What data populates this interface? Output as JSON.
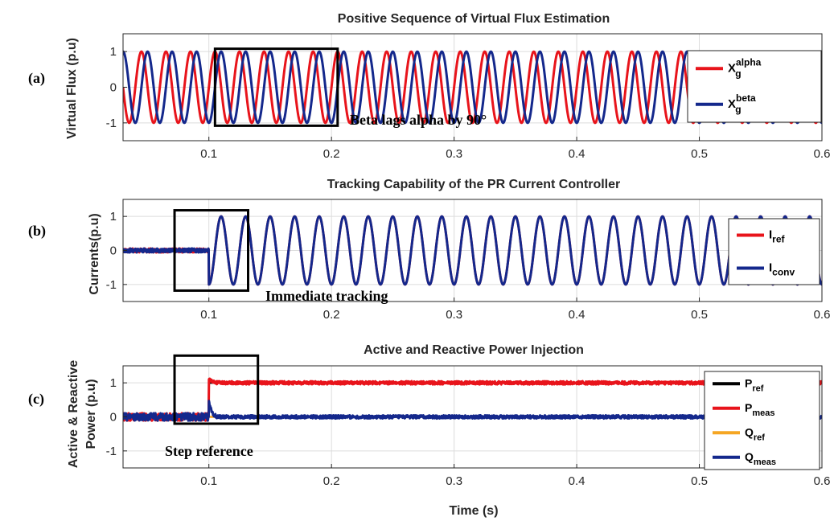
{
  "xlabel": "Time (s)",
  "colors": {
    "red": "#e8141b",
    "blue": "#14288c",
    "black": "#000000",
    "orange": "#f5a623"
  },
  "chart_data": [
    {
      "panel_label": "(a)",
      "type": "line",
      "title": "Positive Sequence of Virtual Flux Estimation",
      "ylabel": "Virtual Flux (p.u)",
      "xlim": [
        0.03,
        0.6
      ],
      "ylim": [
        -1.5,
        1.5
      ],
      "xticks": [
        "0.1",
        "0.2",
        "0.3",
        "0.4",
        "0.5",
        "0.6"
      ],
      "yticks": [
        "-1",
        "0",
        "1"
      ],
      "grid": true,
      "legend_position": "right",
      "series": [
        {
          "name": "X",
          "sup": "alpha",
          "sub": "g",
          "color": "#e8141b",
          "frequency_hz": 50,
          "amplitude": 1,
          "phase_deg": 0
        },
        {
          "name": "X",
          "sup": "beta",
          "sub": "g",
          "color": "#14288c",
          "frequency_hz": 50,
          "amplitude": 1,
          "phase_deg": -90
        }
      ],
      "annotation": {
        "text": "Beta lags alpha by 90°",
        "box_x": [
          0.105,
          0.205
        ],
        "box_y": [
          -1.08,
          1.08
        ]
      }
    },
    {
      "panel_label": "(b)",
      "type": "line",
      "title": "Tracking Capability of the PR Current Controller",
      "ylabel": "Currents(p.u)",
      "xlim": [
        0.03,
        0.6
      ],
      "ylim": [
        -1.5,
        1.5
      ],
      "xticks": [
        "0.1",
        "0.2",
        "0.3",
        "0.4",
        "0.5",
        "0.6"
      ],
      "yticks": [
        "-1",
        "0",
        "1"
      ],
      "grid": true,
      "legend_position": "right",
      "step_time": 0.1,
      "series": [
        {
          "name": "I",
          "sub": "ref",
          "color": "#e8141b",
          "frequency_hz": 50,
          "amplitude": 1
        },
        {
          "name": "I",
          "sub": "conv",
          "color": "#14288c",
          "frequency_hz": 50,
          "amplitude": 1
        }
      ],
      "annotation": {
        "text": "Immediate tracking",
        "box_x": [
          0.072,
          0.132
        ],
        "box_y": [
          -1.18,
          1.18
        ]
      }
    },
    {
      "panel_label": "(c)",
      "type": "line",
      "title": "Active and Reactive Power Injection",
      "ylabel_lines": [
        "Active & Reactive",
        "Power (p.u)"
      ],
      "xlim": [
        0.03,
        0.6
      ],
      "ylim": [
        -1.5,
        1.5
      ],
      "xticks": [
        "0.1",
        "0.2",
        "0.3",
        "0.4",
        "0.5",
        "0.6"
      ],
      "yticks": [
        "-1",
        "0",
        "1"
      ],
      "grid": true,
      "legend_position": "right",
      "step_time": 0.1,
      "series": [
        {
          "name": "P",
          "sub": "ref",
          "color": "#000000",
          "before": 0,
          "after": 1
        },
        {
          "name": "P",
          "sub": "meas",
          "color": "#e8141b",
          "before": 0,
          "after": 1
        },
        {
          "name": "Q",
          "sub": "ref",
          "color": "#f5a623",
          "before": 0,
          "after": 0
        },
        {
          "name": "Q",
          "sub": "meas",
          "color": "#14288c",
          "before": 0,
          "after": 0
        }
      ],
      "annotation": {
        "text": "Step reference",
        "box_x": [
          0.072,
          0.14
        ],
        "box_y": [
          -0.2,
          1.8
        ]
      }
    }
  ]
}
